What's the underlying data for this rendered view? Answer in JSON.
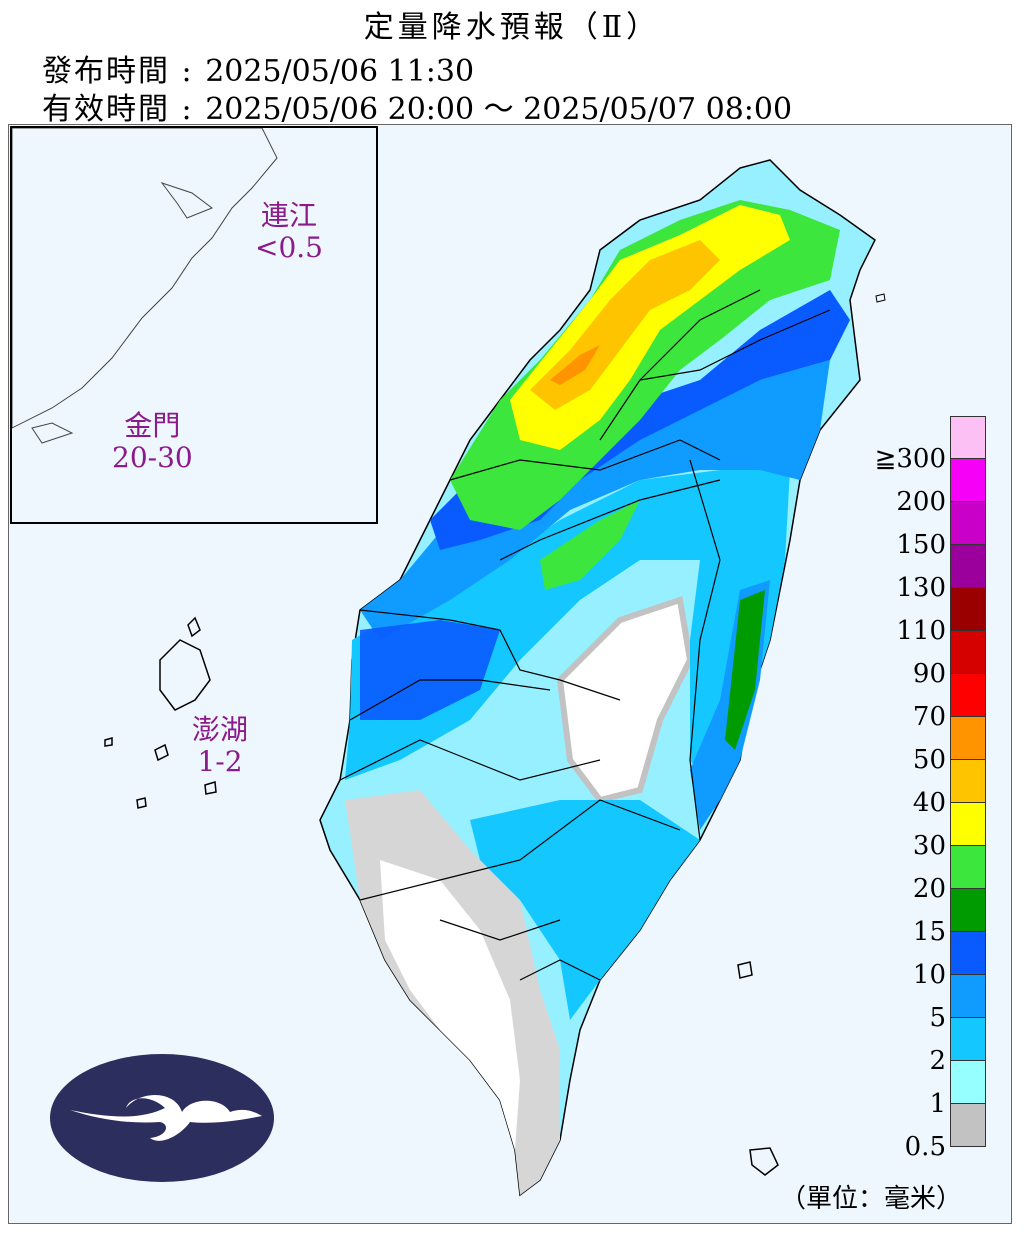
{
  "header": {
    "title": "定量降水預報（Ⅱ）",
    "issue_label": "發布時間 : ",
    "issue_time": "2025/05/06 11:30",
    "valid_label": "有效時間 : ",
    "valid_time": "2025/05/06 20:00 ～ 2025/05/07 08:00"
  },
  "regions": [
    {
      "name": "連江",
      "value": "<0.5"
    },
    {
      "name": "金門",
      "value": "20-30"
    },
    {
      "name": "澎湖",
      "value": "1-2"
    }
  ],
  "legend": {
    "unit": "（單位：毫米）",
    "ticks": [
      "≧300",
      "200",
      "150",
      "130",
      "110",
      "90",
      "70",
      "50",
      "40",
      "30",
      "20",
      "15",
      "10",
      "5",
      "2",
      "1",
      "0.5"
    ],
    "colors": [
      "#fcc0f4",
      "#f700f7",
      "#c800c8",
      "#9c009c",
      "#9a0000",
      "#d50000",
      "#ff0000",
      "#ff9400",
      "#ffc400",
      "#ffff00",
      "#3ce63c",
      "#009b00",
      "#0a5bff",
      "#0f9bff",
      "#14c8ff",
      "#96ffff",
      "#c2c2c2"
    ]
  },
  "colors": {
    "region_label": "#8b1a8b",
    "sea": "#eef7fd",
    "logo": "#2c2e5e"
  },
  "icons": {
    "logo": "cwa-cloud-logo"
  }
}
